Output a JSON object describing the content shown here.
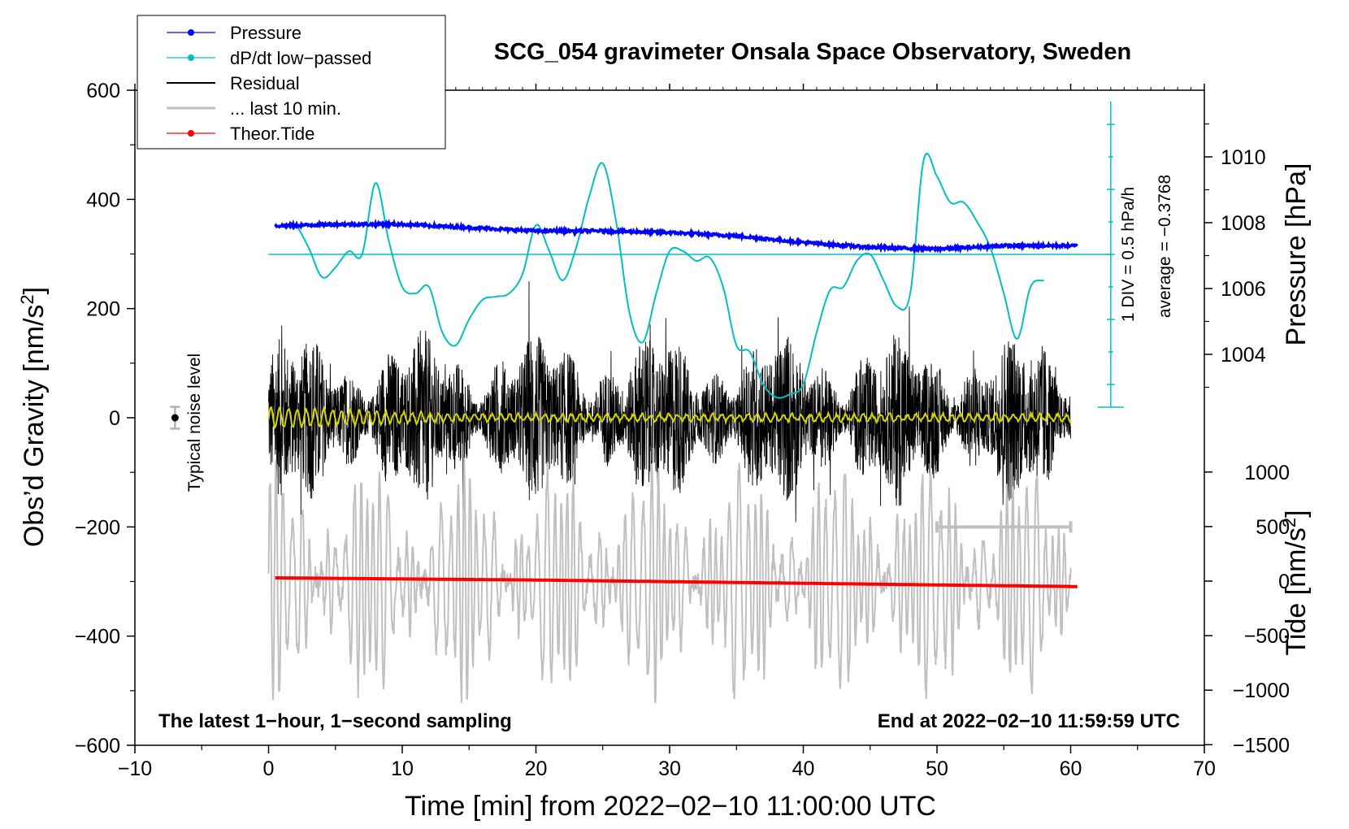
{
  "chart_data": {
    "type": "line",
    "title": "SCG_054 gravimeter Onsala Space Observatory, Sweden",
    "xlabel": "Time [min] from 2022−02−10 11:00:00 UTC",
    "ylabel_left": "Obs’d Gravity [nm/s",
    "ylabel_left_sup": "2",
    "ylabel_left_close": "]",
    "ylabel_right_pressure": "Pressure [hPa]",
    "ylabel_right_tide": "Tide [nm/s",
    "ylabel_right_tide_sup": "2",
    "ylabel_right_tide_close": "]",
    "xlim": [
      -10,
      70
    ],
    "ylim_left": [
      -600,
      600
    ],
    "x_ticks": [
      -10,
      0,
      10,
      20,
      30,
      40,
      50,
      60,
      70
    ],
    "x_tick_labels": [
      "−10",
      "0",
      "10",
      "20",
      "30",
      "40",
      "50",
      "60",
      "70"
    ],
    "y_ticks_left": [
      -600,
      -400,
      -200,
      0,
      200,
      400,
      600
    ],
    "y_tick_labels_left": [
      "−600",
      "−400",
      "−200",
      "0",
      "200",
      "400",
      "600"
    ],
    "pressure_axis": {
      "ticks": [
        1004,
        1006,
        1008,
        1010
      ],
      "tick_labels": [
        "1004",
        "1006",
        "1008",
        "1010"
      ]
    },
    "tide_axis": {
      "ticks": [
        -1500,
        -1000,
        -500,
        0,
        500,
        1000
      ],
      "tick_labels": [
        "−1500",
        "−1000",
        "−500",
        "0",
        "500",
        "1000"
      ]
    },
    "legend": [
      {
        "label": "Pressure",
        "color": "#0000ff",
        "marker": true
      },
      {
        "label": "dP/dt low−passed",
        "color": "#00c0c0",
        "marker": true
      },
      {
        "label": "Residual",
        "color": "#000000",
        "marker": false
      },
      {
        "label": "... last 10 min.",
        "color": "#c0c0c0",
        "marker": false
      },
      {
        "label": "Theor.Tide",
        "color": "#ff0000",
        "marker": true
      }
    ],
    "series": [
      {
        "name": "Pressure",
        "color": "#0000ff",
        "x": [
          0.5,
          5,
          10,
          15,
          20,
          25,
          30,
          35,
          40,
          45,
          50,
          55,
          60.5
        ],
        "values": [
          1007.9,
          1007.95,
          1007.95,
          1007.85,
          1007.75,
          1007.75,
          1007.7,
          1007.6,
          1007.4,
          1007.25,
          1007.2,
          1007.3,
          1007.3
        ]
      },
      {
        "name": "dP/dt low-passed",
        "color": "#00c0c0",
        "x": [
          2,
          3,
          4,
          5,
          6,
          7,
          8,
          9,
          10,
          11,
          12,
          13,
          14,
          15,
          16,
          17,
          18,
          19,
          20,
          21,
          22,
          23,
          24,
          25,
          26,
          27,
          28,
          29,
          30,
          31,
          32,
          33,
          34,
          35,
          36,
          37,
          38,
          39,
          40,
          41,
          42,
          43,
          44,
          45,
          46,
          47,
          48,
          49,
          50,
          51,
          52,
          53,
          54,
          55,
          56,
          57,
          58
        ],
        "values": [
          0.45,
          0.1,
          -0.35,
          -0.2,
          0.05,
          0.0,
          1.1,
          0.2,
          -0.5,
          -0.6,
          -0.5,
          -1.2,
          -1.4,
          -1.0,
          -0.7,
          -0.65,
          -0.6,
          -0.3,
          0.45,
          0.05,
          -0.4,
          0.1,
          0.9,
          1.4,
          0.5,
          -0.9,
          -1.35,
          -0.6,
          0.05,
          0.05,
          -0.1,
          -0.05,
          -0.5,
          -1.4,
          -1.5,
          -2.0,
          -2.2,
          -2.15,
          -2.0,
          -1.2,
          -0.55,
          -0.5,
          -0.1,
          0.0,
          -0.4,
          -0.8,
          -0.6,
          1.45,
          1.2,
          0.8,
          0.8,
          0.5,
          0.1,
          -0.6,
          -1.3,
          -0.5,
          -0.4
        ],
        "zero_line": 0,
        "annotation": "1 DIV = 0.5 hPa/h",
        "average_label": "average = −0.3768"
      },
      {
        "name": "Residual",
        "color": "#000000",
        "x_range": [
          0,
          60
        ],
        "amplitude_range": [
          -200,
          250
        ],
        "mean": 0
      },
      {
        "name": "Residual low-passed",
        "color": "#d4d400",
        "x_range": [
          0,
          60
        ],
        "mean": 0
      },
      {
        "name": "... last 10 min.",
        "color": "#c0c0c0",
        "x_range": [
          0,
          60
        ],
        "shown_offset": -300,
        "bar_range": [
          50,
          60
        ]
      },
      {
        "name": "Theor.Tide",
        "color": "#ff0000",
        "x": [
          0.5,
          10,
          20,
          30,
          40,
          50,
          60.5
        ],
        "values": [
          30,
          20,
          10,
          -5,
          -20,
          -35,
          -50
        ]
      }
    ],
    "noise_level": {
      "x": -7,
      "value": 0,
      "error": 20,
      "label": "Typical noise level"
    },
    "annotations": {
      "left_note": "The latest 1−hour, 1−second sampling",
      "right_note": "End at 2022−02−10 11:59:59 UTC"
    }
  }
}
